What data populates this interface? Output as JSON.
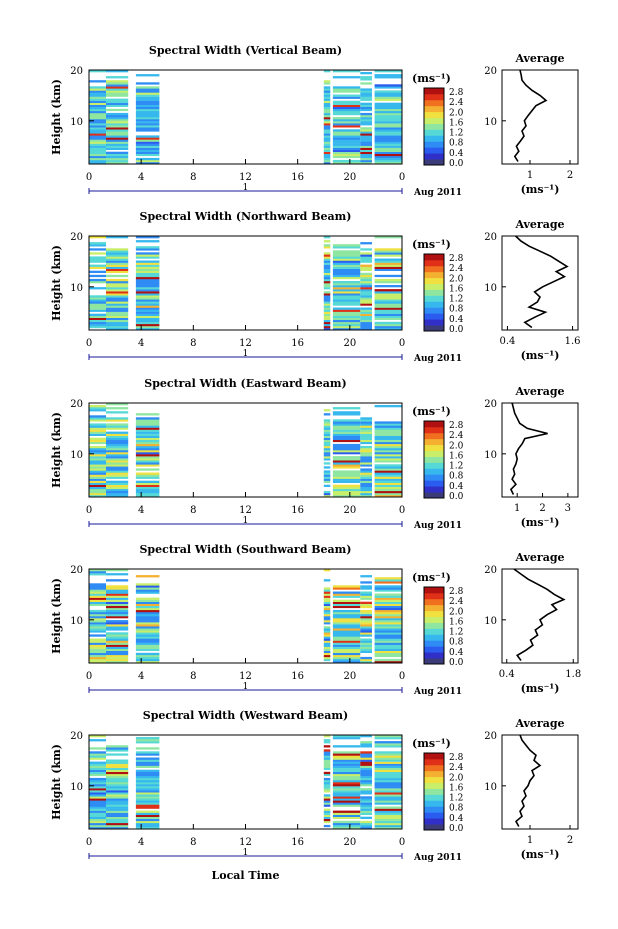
{
  "colorbar": {
    "unit_label": "(ms⁻¹)",
    "ticks": [
      "2.8",
      "2.4",
      "2.0",
      "1.6",
      "1.2",
      "0.8",
      "0.4",
      "0.0"
    ],
    "colors": [
      "#3b3b7a",
      "#3030c8",
      "#2a5cf0",
      "#2f8cf4",
      "#36b8ee",
      "#56d8d6",
      "#8ee6a0",
      "#c8ee6a",
      "#f0e040",
      "#f4b030",
      "#f07020",
      "#e03018",
      "#b01010"
    ]
  },
  "shared": {
    "time_label": "Aug 2011",
    "day_label": "1",
    "height_label": "Height (km)",
    "xlabel_bottom": "Local Time",
    "avg_title": "Average",
    "avg_unit": "(ms⁻¹)"
  },
  "chart_data": [
    {
      "type": "heatmap",
      "title": "Spectral Width (Vertical Beam)",
      "ylabel": "Height (km)",
      "x_ticks": [
        "0",
        "4",
        "8",
        "12",
        "16",
        "20",
        "0"
      ],
      "y_ticks": [
        "20",
        "10"
      ],
      "xlim": [
        0,
        24
      ],
      "ylim": [
        1.5,
        20
      ],
      "data_intervals_hours": [
        [
          0,
          1.3
        ],
        [
          1.3,
          3.0
        ],
        [
          3.6,
          5.4
        ],
        [
          18.0,
          18.5
        ],
        [
          18.7,
          20.8
        ],
        [
          20.8,
          21.7
        ],
        [
          21.9,
          24
        ]
      ],
      "typical_range_ms": [
        0.6,
        1.6
      ],
      "average_profile": {
        "title": "Average",
        "xlabel": "(ms⁻¹)",
        "x_ticks": [
          "1",
          "2"
        ],
        "xlim": [
          0.3,
          2.2
        ],
        "y_ticks": [
          "20",
          "10"
        ],
        "ylim": [
          1.5,
          20
        ],
        "height_km": [
          2,
          3,
          4,
          5,
          6,
          7,
          8,
          9,
          10,
          11,
          12,
          13,
          14,
          15,
          16,
          17,
          18,
          19,
          20
        ],
        "width_ms": [
          0.7,
          0.62,
          0.72,
          0.66,
          0.76,
          0.85,
          0.8,
          0.9,
          0.86,
          0.95,
          1.05,
          1.15,
          1.4,
          1.25,
          1.05,
          0.9,
          0.8,
          0.78,
          0.75
        ]
      }
    },
    {
      "type": "heatmap",
      "title": "Spectral Width (Northward Beam)",
      "ylabel": "Height (km)",
      "x_ticks": [
        "0",
        "4",
        "8",
        "12",
        "16",
        "20",
        "0"
      ],
      "y_ticks": [
        "20",
        "10"
      ],
      "xlim": [
        0,
        24
      ],
      "ylim": [
        1.5,
        20
      ],
      "data_intervals_hours": [
        [
          0,
          1.3
        ],
        [
          1.3,
          3.0
        ],
        [
          3.6,
          5.4
        ],
        [
          18.0,
          18.5
        ],
        [
          18.7,
          20.8
        ],
        [
          20.8,
          21.7
        ],
        [
          21.9,
          24
        ]
      ],
      "typical_range_ms": [
        0.6,
        2.0
      ],
      "average_profile": {
        "title": "Average",
        "xlabel": "(ms⁻¹)",
        "x_ticks": [
          "0.4",
          "1.6"
        ],
        "xlim": [
          0.3,
          1.7
        ],
        "y_ticks": [
          "20",
          "10"
        ],
        "ylim": [
          1.5,
          20
        ],
        "height_km": [
          2,
          3,
          4,
          5,
          6,
          7,
          8,
          9,
          10,
          11,
          12,
          13,
          14,
          15,
          16,
          17,
          18,
          19,
          20
        ],
        "width_ms": [
          0.85,
          0.72,
          0.9,
          1.1,
          0.8,
          0.95,
          1.0,
          0.9,
          1.05,
          1.25,
          1.45,
          1.3,
          1.5,
          1.35,
          1.2,
          1.0,
          0.8,
          0.65,
          0.55
        ]
      }
    },
    {
      "type": "heatmap",
      "title": "Spectral Width (Eastward Beam)",
      "ylabel": "Height (km)",
      "x_ticks": [
        "0",
        "4",
        "8",
        "12",
        "16",
        "20",
        "0"
      ],
      "y_ticks": [
        "20",
        "10"
      ],
      "xlim": [
        0,
        24
      ],
      "ylim": [
        1.5,
        20
      ],
      "data_intervals_hours": [
        [
          0,
          1.3
        ],
        [
          1.3,
          3.0
        ],
        [
          3.6,
          5.4
        ],
        [
          18.0,
          18.5
        ],
        [
          18.7,
          20.8
        ],
        [
          20.8,
          21.7
        ],
        [
          21.9,
          24
        ]
      ],
      "typical_range_ms": [
        0.6,
        2.0
      ],
      "average_profile": {
        "title": "Average",
        "xlabel": "(ms⁻¹)",
        "x_ticks": [
          "1",
          "2",
          "3"
        ],
        "xlim": [
          0.4,
          3.4
        ],
        "y_ticks": [
          "20",
          "10"
        ],
        "ylim": [
          1.5,
          20
        ],
        "height_km": [
          2,
          3,
          4,
          5,
          6,
          7,
          8,
          9,
          10,
          11,
          12,
          13,
          14,
          15,
          16,
          17,
          18,
          19,
          20
        ],
        "width_ms": [
          0.85,
          0.75,
          0.95,
          0.8,
          0.9,
          0.85,
          0.95,
          1.0,
          0.95,
          1.05,
          1.2,
          1.3,
          2.2,
          1.4,
          1.1,
          1.0,
          0.9,
          0.85,
          0.8
        ]
      }
    },
    {
      "type": "heatmap",
      "title": "Spectral Width (Southward Beam)",
      "ylabel": "Height (km)",
      "x_ticks": [
        "0",
        "4",
        "8",
        "12",
        "16",
        "20",
        "0"
      ],
      "y_ticks": [
        "20",
        "10"
      ],
      "xlim": [
        0,
        24
      ],
      "ylim": [
        1.5,
        20
      ],
      "data_intervals_hours": [
        [
          0,
          1.3
        ],
        [
          1.3,
          3.0
        ],
        [
          3.6,
          5.4
        ],
        [
          18.0,
          18.5
        ],
        [
          18.7,
          20.8
        ],
        [
          20.8,
          21.7
        ],
        [
          21.9,
          24
        ]
      ],
      "typical_range_ms": [
        0.6,
        2.2
      ],
      "average_profile": {
        "title": "Average",
        "xlabel": "(ms⁻¹)",
        "x_ticks": [
          "0.4",
          "1.8"
        ],
        "xlim": [
          0.3,
          1.9
        ],
        "y_ticks": [
          "20",
          "10"
        ],
        "ylim": [
          1.5,
          20
        ],
        "height_km": [
          2,
          3,
          4,
          5,
          6,
          7,
          8,
          9,
          10,
          11,
          12,
          13,
          14,
          15,
          16,
          17,
          18,
          19,
          20
        ],
        "width_ms": [
          0.7,
          0.62,
          0.8,
          0.95,
          0.9,
          1.05,
          1.0,
          1.15,
          1.1,
          1.25,
          1.45,
          1.35,
          1.6,
          1.4,
          1.25,
          1.05,
          0.85,
          0.7,
          0.55
        ]
      }
    },
    {
      "type": "heatmap",
      "title": "Spectral Width (Westward Beam)",
      "ylabel": "Height (km)",
      "x_ticks": [
        "0",
        "4",
        "8",
        "12",
        "16",
        "20",
        "0"
      ],
      "y_ticks": [
        "20",
        "10"
      ],
      "xlim": [
        0,
        24
      ],
      "ylim": [
        1.5,
        20
      ],
      "data_intervals_hours": [
        [
          0,
          1.3
        ],
        [
          1.3,
          3.0
        ],
        [
          3.6,
          5.4
        ],
        [
          18.0,
          18.5
        ],
        [
          18.7,
          20.8
        ],
        [
          20.8,
          21.7
        ],
        [
          21.9,
          24
        ]
      ],
      "typical_range_ms": [
        0.6,
        1.8
      ],
      "average_profile": {
        "title": "Average",
        "xlabel": "(ms⁻¹)",
        "x_ticks": [
          "1",
          "2"
        ],
        "xlim": [
          0.3,
          2.2
        ],
        "y_ticks": [
          "20",
          "10"
        ],
        "ylim": [
          1.5,
          20
        ],
        "height_km": [
          2,
          3,
          4,
          5,
          6,
          7,
          8,
          9,
          10,
          11,
          12,
          13,
          14,
          15,
          16,
          17,
          18,
          19,
          20
        ],
        "width_ms": [
          0.72,
          0.65,
          0.8,
          0.75,
          0.85,
          0.8,
          0.9,
          0.85,
          0.95,
          1.0,
          1.1,
          1.05,
          1.25,
          1.1,
          1.15,
          1.0,
          0.9,
          0.8,
          0.75
        ]
      }
    }
  ]
}
